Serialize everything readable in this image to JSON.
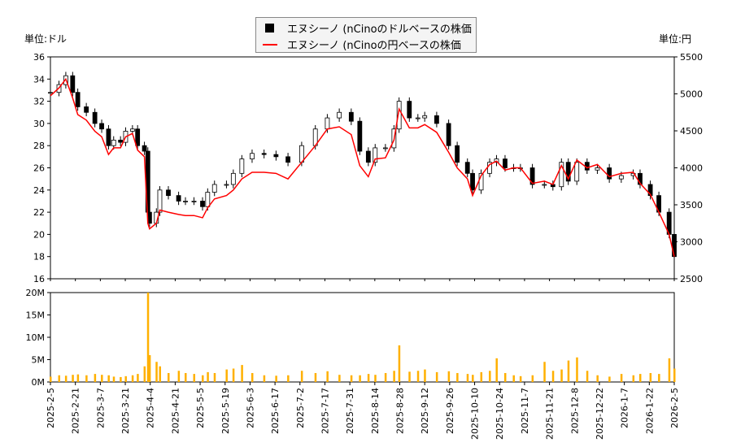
{
  "chart_data": {
    "type": "candlestick+line+bar",
    "legend": {
      "placement": "top-center",
      "entries": [
        "エヌシーノ (nCinoのドルベースの株価",
        "エヌシーノ (nCinoの円ベースの株価"
      ]
    },
    "left_unit": "単位:ドル",
    "right_unit": "単位:円",
    "colors": {
      "usd": "#000000",
      "jpy": "#ff0000",
      "volume": "#ffb000"
    },
    "y_left": {
      "range": [
        16,
        36
      ],
      "ticks": [
        "16",
        "18",
        "20",
        "22",
        "24",
        "26",
        "28",
        "30",
        "32",
        "34",
        "36"
      ]
    },
    "y_right": {
      "range": [
        2500,
        5500
      ],
      "ticks": [
        "2500",
        "3000",
        "3500",
        "4000",
        "4500",
        "5000",
        "5500"
      ]
    },
    "y_volume": {
      "range": [
        0,
        20
      ],
      "ticks": [
        "0M",
        "5M",
        "10M",
        "15M",
        "20M"
      ]
    },
    "x_ticks": [
      "2025-2-5",
      "2025-2-21",
      "2025-3-7",
      "2025-3-21",
      "2025-4-4",
      "2025-4-21",
      "2025-5-5",
      "2025-5-19",
      "2025-6-3",
      "2025-6-17",
      "2025-7-2",
      "2025-7-17",
      "2025-7-31",
      "2025-8-14",
      "2025-8-28",
      "2025-9-12",
      "2025-9-26",
      "2025-10-10",
      "2025-10-24",
      "2025-11-7",
      "2025-11-21",
      "2025-12-8",
      "2025-12-22",
      "2026-1-7",
      "2026-1-22",
      "2026-2-5"
    ],
    "dates": [
      "2025-02-05",
      "2025-02-10",
      "2025-02-14",
      "2025-02-18",
      "2025-02-21",
      "2025-02-26",
      "2025-03-03",
      "2025-03-07",
      "2025-03-11",
      "2025-03-14",
      "2025-03-18",
      "2025-03-21",
      "2025-03-25",
      "2025-03-28",
      "2025-04-01",
      "2025-04-03",
      "2025-04-04",
      "2025-04-08",
      "2025-04-10",
      "2025-04-15",
      "2025-04-21",
      "2025-04-25",
      "2025-04-30",
      "2025-05-05",
      "2025-05-08",
      "2025-05-12",
      "2025-05-19",
      "2025-05-23",
      "2025-05-28",
      "2025-06-03",
      "2025-06-10",
      "2025-06-17",
      "2025-06-24",
      "2025-07-02",
      "2025-07-10",
      "2025-07-17",
      "2025-07-24",
      "2025-07-31",
      "2025-08-05",
      "2025-08-10",
      "2025-08-14",
      "2025-08-20",
      "2025-08-25",
      "2025-08-28",
      "2025-09-03",
      "2025-09-08",
      "2025-09-12",
      "2025-09-19",
      "2025-09-26",
      "2025-10-01",
      "2025-10-07",
      "2025-10-10",
      "2025-10-15",
      "2025-10-20",
      "2025-10-24",
      "2025-10-29",
      "2025-11-03",
      "2025-11-07",
      "2025-11-14",
      "2025-11-21",
      "2025-11-26",
      "2025-12-01",
      "2025-12-05",
      "2025-12-10",
      "2025-12-16",
      "2025-12-22",
      "2025-12-29",
      "2026-01-05",
      "2026-01-12",
      "2026-01-16",
      "2026-01-22",
      "2026-01-27",
      "2026-02-02",
      "2026-02-05"
    ],
    "usd_close": [
      32.8,
      33.5,
      34.3,
      32.8,
      31.5,
      31,
      30,
      29.5,
      28,
      28.5,
      28.3,
      29.3,
      29.5,
      28,
      27.5,
      22,
      21,
      22,
      24,
      23.5,
      23,
      23,
      23,
      22.5,
      23.8,
      24.5,
      24.5,
      25.5,
      26.8,
      27.3,
      27.2,
      27,
      26.5,
      28,
      29.5,
      30.5,
      31,
      30.2,
      27.5,
      26.5,
      27.8,
      27.8,
      29.5,
      32,
      30.5,
      30.5,
      30.7,
      30,
      28,
      26.5,
      25.5,
      24,
      25.5,
      26.5,
      26.8,
      26,
      26,
      26,
      24.5,
      24.5,
      24.3,
      26.5,
      24.8,
      26.5,
      25.8,
      26,
      25,
      25.3,
      25.5,
      24.5,
      23.5,
      22,
      20,
      18
    ],
    "jpy_close": [
      4975,
      5080,
      5200,
      4945,
      4720,
      4645,
      4495,
      4420,
      4180,
      4270,
      4270,
      4420,
      4465,
      4240,
      4150,
      3250,
      3175,
      3250,
      3430,
      3400,
      3370,
      3355,
      3355,
      3325,
      3460,
      3580,
      3625,
      3700,
      3850,
      3940,
      3940,
      3925,
      3850,
      4075,
      4300,
      4525,
      4555,
      4450,
      4030,
      3880,
      4120,
      4135,
      4375,
      4795,
      4540,
      4540,
      4585,
      4480,
      4210,
      4000,
      3850,
      3625,
      3895,
      4045,
      4090,
      3970,
      4000,
      4000,
      3790,
      3820,
      3775,
      4030,
      3850,
      4105,
      4000,
      4045,
      3880,
      3925,
      3940,
      3790,
      3640,
      3400,
      3100,
      2800
    ],
    "volume_m": [
      1.2,
      1.5,
      1.4,
      1.6,
      1.7,
      1.5,
      1.8,
      1.6,
      1.5,
      1.2,
      1.1,
      1.3,
      1.5,
      1.8,
      3.5,
      20,
      6,
      4.5,
      3.5,
      2,
      2.5,
      2,
      1.8,
      1.5,
      2.2,
      2,
      2.8,
      3,
      3.8,
      2,
      1.5,
      1.4,
      1.5,
      2.5,
      2,
      2.4,
      1.6,
      1.5,
      1.5,
      1.8,
      1.6,
      2,
      2.5,
      8.2,
      2.3,
      2.5,
      2.8,
      2.2,
      2.4,
      2,
      1.8,
      1.6,
      2.2,
      2.5,
      5.3,
      2,
      1.5,
      1.3,
      1.5,
      4.5,
      2.5,
      2.8,
      4.8,
      5.5,
      2.5,
      1.5,
      1.2,
      1.8,
      1.5,
      1.8,
      2,
      1.8,
      5.3,
      3
    ]
  }
}
